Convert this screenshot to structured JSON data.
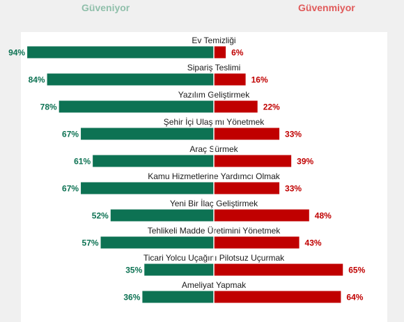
{
  "chart_data": {
    "type": "bar",
    "title": "",
    "categories": [
      "Ev Temizliği",
      "Sipariş Teslimi",
      "Yazılım Geliştirmek",
      "Şehir İçi Ulaşımı Yönetmek",
      "Araç Sürmek",
      "Kamu Hizmetlerine Yardımcı Olmak",
      "Yeni Bir İlaç Geliştirmek",
      "Tehlikeli Madde Üretimini Yönetmek",
      "Ticari Yolcu Uçağını Pilotsuz Uçurmak",
      "Ameliyat Yapmak"
    ],
    "series": [
      {
        "name": "Güveniyor",
        "values": [
          94,
          84,
          78,
          67,
          61,
          67,
          52,
          57,
          35,
          36
        ],
        "labels": [
          "94%",
          "84%",
          "78%",
          "67%",
          "61%",
          "67%",
          "52%",
          "57%",
          "35%",
          "36%"
        ],
        "color": "#0d7253"
      },
      {
        "name": "Güvenmiyor",
        "values": [
          6,
          16,
          22,
          33,
          39,
          33,
          48,
          43,
          65,
          64
        ],
        "labels": [
          "6%",
          "16%",
          "22%",
          "33%",
          "39%",
          "33%",
          "48%",
          "43%",
          "65%",
          "64%"
        ],
        "color": "#c00000"
      }
    ],
    "xlim": [
      0,
      100
    ],
    "legend_position": "top",
    "grid": false
  }
}
